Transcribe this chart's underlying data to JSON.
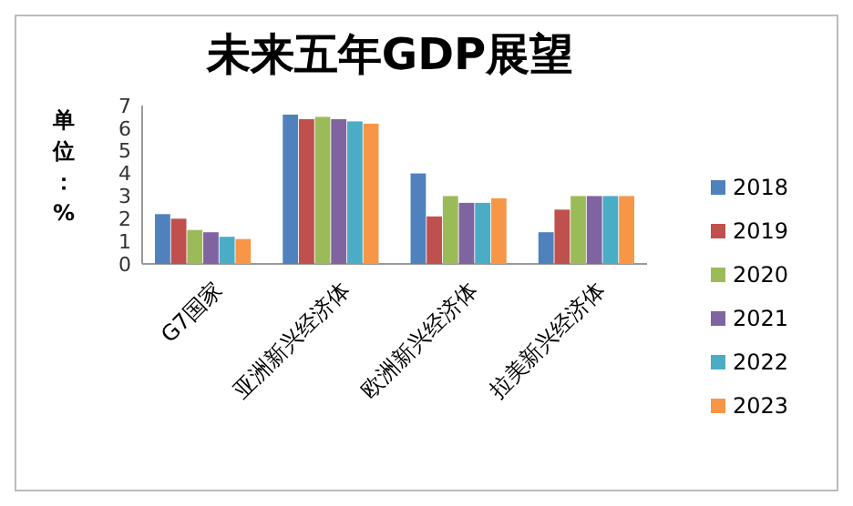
{
  "chart_data": {
    "type": "bar",
    "title": "未来五年GDP展望",
    "ylabel": "单位：%",
    "categories": [
      "G7国家",
      "亚洲新兴经济体",
      "欧洲新兴经济体",
      "拉美新兴经济体"
    ],
    "series": [
      {
        "name": "2018",
        "color": "#4f81bd",
        "values": [
          2.2,
          6.6,
          4.0,
          1.4
        ]
      },
      {
        "name": "2019",
        "color": "#c0504d",
        "values": [
          2.0,
          6.4,
          2.1,
          2.4
        ]
      },
      {
        "name": "2020",
        "color": "#9bbb59",
        "values": [
          1.5,
          6.5,
          3.0,
          3.0
        ]
      },
      {
        "name": "2021",
        "color": "#8064a2",
        "values": [
          1.4,
          6.4,
          2.7,
          3.0
        ]
      },
      {
        "name": "2022",
        "color": "#4bacc6",
        "values": [
          1.2,
          6.3,
          2.7,
          3.0
        ]
      },
      {
        "name": "2023",
        "color": "#f79646",
        "values": [
          1.1,
          6.2,
          2.9,
          3.0
        ]
      }
    ],
    "ylim": [
      0,
      7
    ],
    "yticks": [
      0,
      1,
      2,
      3,
      4,
      5,
      6,
      7
    ],
    "grid": false,
    "legend": "right"
  }
}
